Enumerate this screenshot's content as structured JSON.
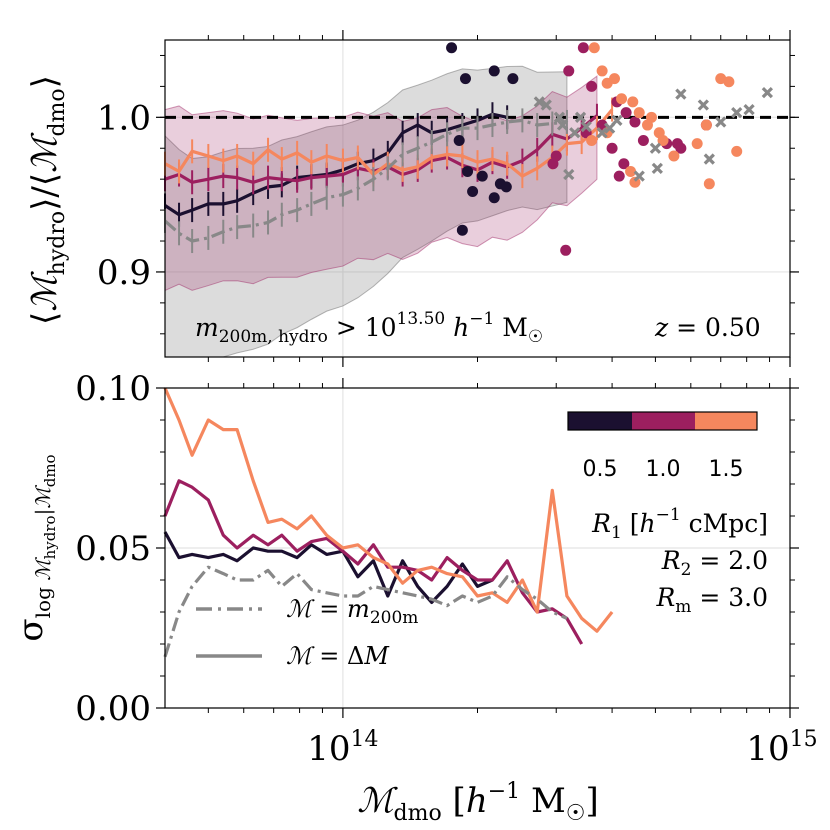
{
  "chart_data": [
    {
      "type": "line",
      "panel": "top",
      "ylabel": "⟨ℳhydro⟩/⟨ℳdmo⟩",
      "ylim": [
        0.845,
        1.05
      ],
      "xlim": [
        40000000000000.0,
        1000000000000000.0
      ],
      "x_scale": "log",
      "yticks": [
        "0.9",
        "1.0"
      ],
      "ytick_values": [
        0.9,
        1.0
      ],
      "grid": true,
      "reference_line": 1.0,
      "annotations": [
        "m200m,hydro > 10^13.50 h^-1 M☉",
        "z = 0.50"
      ],
      "x": [
        40000000000000.0,
        43000000000000.0,
        46000000000000.0,
        50000000000000.0,
        54000000000000.0,
        58000000000000.0,
        63000000000000.0,
        68000000000000.0,
        73000000000000.0,
        79000000000000.0,
        85000000000000.0,
        92000000000000.0,
        100000000000000.0,
        108000000000000.0,
        117000000000000.0,
        126000000000000.0,
        136000000000000.0,
        147000000000000.0,
        158000000000000.0,
        171000000000000.0,
        185000000000000.0,
        200000000000000.0,
        216000000000000.0,
        233000000000000.0,
        252000000000000.0,
        272000000000000.0,
        294000000000000.0,
        317000000000000.0,
        342000000000000.0,
        370000000000000.0,
        400000000000000.0
      ],
      "series": [
        {
          "name": "0.5",
          "color": "#1b1030",
          "values": [
            0.943,
            0.937,
            0.94,
            0.944,
            0.944,
            0.946,
            0.951,
            0.955,
            0.956,
            0.961,
            0.962,
            0.963,
            0.966,
            0.97,
            0.972,
            0.977,
            0.99,
            0.995,
            0.99,
            0.992,
            0.995,
            0.998,
            1.002,
            1.0,
            null,
            null,
            null,
            null,
            null,
            null,
            null
          ]
        },
        {
          "name": "1.0",
          "color": "#9c1f5f",
          "values": [
            0.96,
            0.963,
            0.958,
            0.96,
            0.962,
            0.961,
            0.958,
            0.961,
            0.96,
            0.959,
            0.961,
            0.962,
            0.963,
            0.967,
            0.965,
            0.968,
            0.963,
            0.966,
            0.972,
            0.974,
            0.969,
            0.966,
            0.971,
            0.968,
            0.972,
            0.979,
            0.989,
            0.986,
            0.993,
            1.001,
            null
          ]
        },
        {
          "name": "1.5",
          "color": "#f5875e",
          "values": [
            0.97,
            0.965,
            0.978,
            0.975,
            0.972,
            0.975,
            0.97,
            0.979,
            0.973,
            0.977,
            0.971,
            0.975,
            0.972,
            0.974,
            0.963,
            0.97,
            0.966,
            0.968,
            0.974,
            0.976,
            0.975,
            0.971,
            0.973,
            0.97,
            0.962,
            0.967,
            0.974,
            0.983,
            0.984,
            0.993,
            1.005
          ]
        },
        {
          "name": "m200m",
          "color": "#888888",
          "dashed": true,
          "values": [
            0.933,
            0.925,
            0.92,
            0.922,
            0.926,
            0.929,
            0.93,
            0.932,
            0.937,
            0.94,
            0.944,
            0.948,
            0.95,
            0.954,
            0.96,
            0.967,
            0.976,
            0.98,
            0.984,
            0.989,
            0.993,
            0.993,
            0.995,
            0.997,
            0.998,
            0.995,
            0.996,
            0.997,
            null,
            null,
            null
          ]
        }
      ],
      "scatter": [
        {
          "name": "0.5",
          "color": "#1b1030",
          "points": [
            [
              175000000000000.0,
              1.045
            ],
            [
              188000000000000.0,
              1.025
            ],
            [
              218000000000000.0,
              1.03
            ],
            [
              240000000000000.0,
              1.025
            ],
            [
              182000000000000.0,
              0.985
            ],
            [
              190000000000000.0,
              0.965
            ],
            [
              205000000000000.0,
              0.962
            ],
            [
              225000000000000.0,
              0.957
            ],
            [
              232000000000000.0,
              0.955
            ],
            [
              195000000000000.0,
              0.952
            ],
            [
              185000000000000.0,
              0.927
            ],
            [
              218000000000000.0,
              0.948
            ]
          ]
        },
        {
          "name": "1.0",
          "color": "#9c1f5f",
          "points": [
            [
              345000000000000.0,
              1.045
            ],
            [
              320000000000000.0,
              1.03
            ],
            [
              360000000000000.0,
              1.02
            ],
            [
              410000000000000.0,
              1.01
            ],
            [
              430000000000000.0,
              1.003
            ],
            [
              450000000000000.0,
              0.997
            ],
            [
              470000000000000.0,
              0.985
            ],
            [
              380000000000000.0,
              0.995
            ],
            [
              400000000000000.0,
              0.98
            ],
            [
              425000000000000.0,
              0.97
            ],
            [
              415000000000000.0,
              0.962
            ],
            [
              315000000000000.0,
              0.914
            ],
            [
              295000000000000.0,
              0.97
            ],
            [
              300000000000000.0,
              0.975
            ],
            [
              530000000000000.0,
              0.983
            ],
            [
              560000000000000.0,
              0.983
            ],
            [
              570000000000000.0,
              0.98
            ],
            [
              650000000000000.0,
              0.995
            ],
            [
              350000000000000.0,
              0.99
            ]
          ]
        },
        {
          "name": "1.5",
          "color": "#f5875e",
          "points": [
            [
              365000000000000.0,
              1.045
            ],
            [
              380000000000000.0,
              1.03
            ],
            [
              390000000000000.0,
              1.022
            ],
            [
              405000000000000.0,
              1.025
            ],
            [
              420000000000000.0,
              1.012
            ],
            [
              445000000000000.0,
              1.01
            ],
            [
              460000000000000.0,
              1.003
            ],
            [
              490000000000000.0,
              1.0
            ],
            [
              480000000000000.0,
              0.995
            ],
            [
              510000000000000.0,
              0.99
            ],
            [
              520000000000000.0,
              0.985
            ],
            [
              550000000000000.0,
              0.975
            ],
            [
              620000000000000.0,
              0.983
            ],
            [
              650000000000000.0,
              0.995
            ],
            [
              700000000000000.0,
              1.025
            ],
            [
              730000000000000.0,
              1.023
            ],
            [
              760000000000000.0,
              0.978
            ],
            [
              660000000000000.0,
              0.957
            ],
            [
              440000000000000.0,
              0.965
            ],
            [
              450000000000000.0,
              0.958
            ],
            [
              360000000000000.0,
              0.985
            ],
            [
              390000000000000.0,
              0.99
            ]
          ]
        },
        {
          "name": "m200m",
          "color": "#888888",
          "marker": "x",
          "points": [
            [
              275000000000000.0,
              1.01
            ],
            [
              285000000000000.0,
              1.008
            ],
            [
              305000000000000.0,
              1.0
            ],
            [
              310000000000000.0,
              0.995
            ],
            [
              330000000000000.0,
              0.99
            ],
            [
              340000000000000.0,
              1.0
            ],
            [
              350000000000000.0,
              0.994
            ],
            [
              380000000000000.0,
              0.99
            ],
            [
              395000000000000.0,
              0.993
            ],
            [
              410000000000000.0,
              0.998
            ],
            [
              570000000000000.0,
              1.015
            ],
            [
              640000000000000.0,
              1.008
            ],
            [
              700000000000000.0,
              0.997
            ],
            [
              760000000000000.0,
              1.003
            ],
            [
              810000000000000.0,
              1.005
            ],
            [
              890000000000000.0,
              1.016
            ],
            [
              660000000000000.0,
              0.973
            ],
            [
              505000000000000.0,
              0.967
            ],
            [
              460000000000000.0,
              0.962
            ],
            [
              320000000000000.0,
              0.963
            ],
            [
              500000000000000.0,
              0.98
            ]
          ]
        }
      ]
    },
    {
      "type": "line",
      "panel": "bottom",
      "ylabel": "σlog ℳhydro|ℳdmo",
      "xlabel": "ℳdmo [h^-1 M☉]",
      "ylim": [
        0.0,
        0.1
      ],
      "xlim": [
        40000000000000.0,
        1000000000000000.0
      ],
      "x_scale": "log",
      "yticks": [
        "0.00",
        "0.05",
        "0.10"
      ],
      "ytick_values": [
        0.0,
        0.05,
        0.1
      ],
      "xticks": [
        "10^14",
        "10^15"
      ],
      "xtick_values": [
        100000000000000.0,
        1000000000000000.0
      ],
      "grid": true,
      "x": [
        40000000000000.0,
        43000000000000.0,
        46000000000000.0,
        50000000000000.0,
        54000000000000.0,
        58000000000000.0,
        63000000000000.0,
        68000000000000.0,
        73000000000000.0,
        79000000000000.0,
        85000000000000.0,
        92000000000000.0,
        100000000000000.0,
        108000000000000.0,
        117000000000000.0,
        126000000000000.0,
        136000000000000.0,
        147000000000000.0,
        158000000000000.0,
        171000000000000.0,
        185000000000000.0,
        200000000000000.0,
        216000000000000.0,
        233000000000000.0,
        252000000000000.0,
        272000000000000.0,
        294000000000000.0,
        317000000000000.0,
        342000000000000.0,
        370000000000000.0,
        400000000000000.0
      ],
      "series": [
        {
          "name": "0.5",
          "color": "#1b1030",
          "values": [
            0.055,
            0.047,
            0.048,
            0.047,
            0.048,
            0.046,
            0.05,
            0.049,
            0.049,
            0.047,
            0.051,
            0.048,
            0.049,
            0.041,
            0.046,
            0.035,
            0.046,
            0.038,
            0.033,
            0.038,
            0.045,
            0.038,
            0.04,
            null,
            null,
            null,
            null,
            null,
            null,
            null,
            null
          ]
        },
        {
          "name": "1.0",
          "color": "#9c1f5f",
          "values": [
            0.06,
            0.071,
            0.069,
            0.065,
            0.054,
            0.05,
            0.054,
            0.051,
            0.054,
            0.049,
            0.052,
            0.053,
            0.049,
            0.045,
            0.051,
            0.044,
            0.044,
            0.043,
            0.04,
            0.047,
            0.043,
            0.04,
            0.04,
            0.046,
            0.036,
            0.03,
            0.031,
            0.028,
            0.02,
            null,
            null
          ]
        },
        {
          "name": "1.5",
          "color": "#f5875e",
          "values": [
            0.1,
            0.09,
            0.079,
            0.09,
            0.087,
            0.087,
            0.071,
            0.058,
            0.059,
            0.056,
            0.06,
            0.054,
            0.05,
            0.051,
            0.047,
            0.045,
            0.039,
            0.043,
            0.044,
            0.042,
            0.041,
            0.035,
            0.036,
            0.033,
            0.04,
            0.03,
            0.068,
            0.035,
            0.028,
            0.024,
            0.03
          ]
        },
        {
          "name": "m200m",
          "color": "#888888",
          "dashed": true,
          "values": [
            0.016,
            0.03,
            0.038,
            0.044,
            0.042,
            0.04,
            0.04,
            0.043,
            0.038,
            0.042,
            0.037,
            0.036,
            0.035,
            0.035,
            0.038,
            0.037,
            0.036,
            0.035,
            0.034,
            0.032,
            0.035,
            0.033,
            0.035,
            0.041,
            0.037,
            0.034,
            0.03,
            0.028,
            null,
            null,
            null
          ]
        }
      ],
      "legend": {
        "items": [
          {
            "label": "ℳ = m200m",
            "style": "dashdot",
            "color": "#888888"
          },
          {
            "label": "ℳ = ΔM",
            "style": "solid",
            "color": "#888888"
          }
        ],
        "colorbar_ticks": [
          "0.5",
          "1.0",
          "1.5"
        ],
        "colorbar_colors": [
          "#1b1030",
          "#9c1f5f",
          "#f5875e"
        ],
        "text": [
          "R1 [h^-1 cMpc]",
          "R2 = 2.0",
          "Rm = 3.0"
        ]
      }
    }
  ]
}
